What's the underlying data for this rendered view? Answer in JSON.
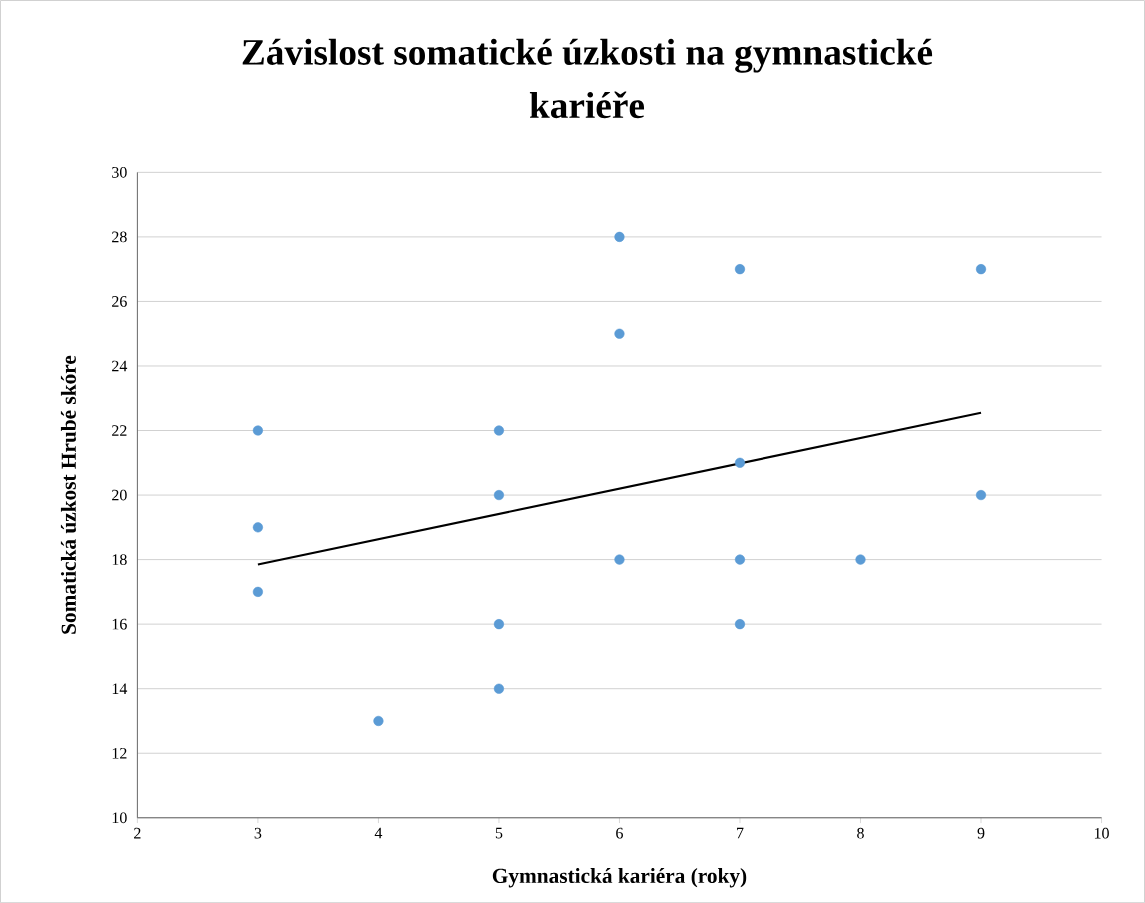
{
  "chart_data": {
    "type": "scatter",
    "title": "Závislost somatické úzkosti na gymnastické kariéře",
    "xlabel": "Gymnastická kariéra (roky)",
    "ylabel": "Somatická úzkost Hrubé skóre",
    "xlim": [
      2,
      10
    ],
    "ylim": [
      10,
      30
    ],
    "xticks": [
      2,
      3,
      4,
      5,
      6,
      7,
      8,
      9,
      10
    ],
    "yticks": [
      10,
      12,
      14,
      16,
      18,
      20,
      22,
      24,
      26,
      28,
      30
    ],
    "grid": "y",
    "series": [
      {
        "color": "#5b9bd5",
        "marker": "circle",
        "x": [
          3,
          3,
          3,
          4,
          5,
          5,
          5,
          5,
          6,
          6,
          6,
          7,
          7,
          7,
          7,
          8,
          9,
          9
        ],
        "values": [
          22,
          19,
          17,
          13,
          22,
          20,
          16,
          14,
          28,
          25,
          18,
          27,
          21,
          18,
          16,
          18,
          27,
          20
        ]
      },
      {
        "type": "line",
        "color": "#000000",
        "marker": "none",
        "x": [
          3,
          9
        ],
        "values": [
          17.85,
          22.55
        ]
      }
    ]
  }
}
